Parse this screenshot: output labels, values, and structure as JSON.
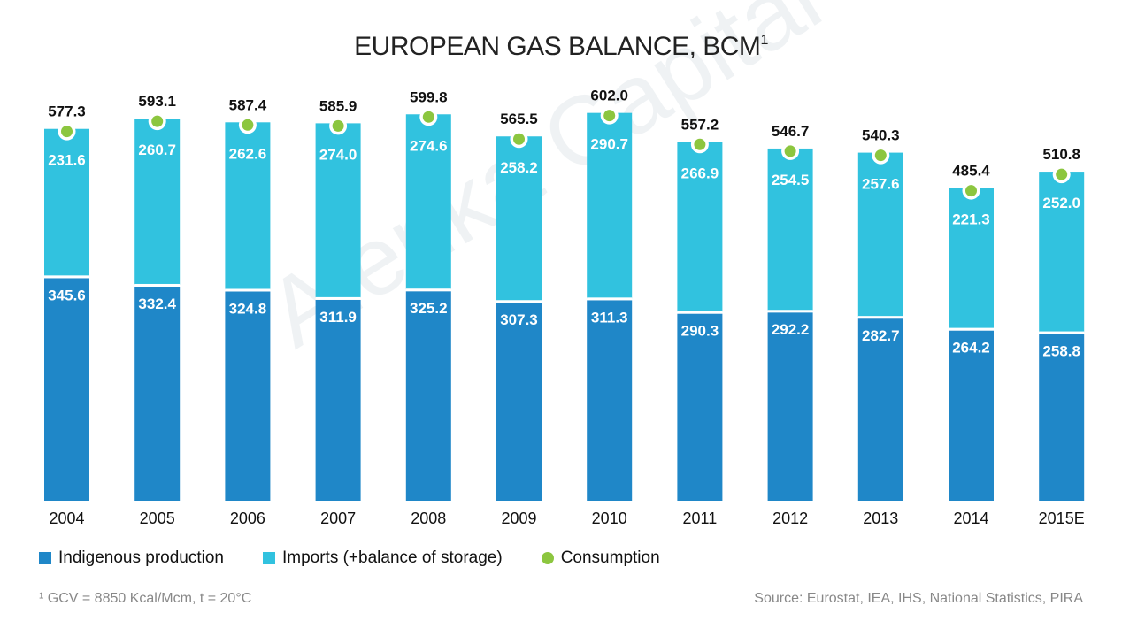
{
  "chart_data": {
    "type": "bar",
    "stacked": true,
    "title": "EUROPEAN GAS BALANCE, BCM",
    "title_superscript": "1",
    "categories": [
      "2004",
      "2005",
      "2006",
      "2007",
      "2008",
      "2009",
      "2010",
      "2011",
      "2012",
      "2013",
      "2014",
      "2015E"
    ],
    "series": [
      {
        "name": "Indigenous production",
        "color": "#1f87c8",
        "values": [
          345.6,
          332.4,
          324.8,
          311.9,
          325.2,
          307.3,
          311.3,
          290.3,
          292.2,
          282.7,
          264.2,
          258.8
        ],
        "labels": [
          "345.6",
          "332.4",
          "324.8",
          "311.9",
          "325.2",
          "307.3",
          "311.3",
          "290.3",
          "292.2",
          "282.7",
          "264.2",
          "258.8"
        ]
      },
      {
        "name": "Imports (+balance of storage)",
        "color": "#31c2df",
        "values": [
          231.6,
          260.7,
          262.6,
          274.0,
          274.6,
          258.2,
          290.7,
          266.9,
          254.5,
          257.6,
          221.3,
          252.0
        ],
        "labels": [
          "231.6",
          "260.7",
          "262.6",
          "274.0",
          "274.6",
          "258.2",
          "290.7",
          "266.9",
          "254.5",
          "257.6",
          "221.3",
          "252.0"
        ]
      }
    ],
    "consumption": {
      "name": "Consumption",
      "color": "#8cc63f",
      "values": [
        577.3,
        593.1,
        587.4,
        585.9,
        599.8,
        565.5,
        602.0,
        557.2,
        546.7,
        540.3,
        485.4,
        510.8
      ],
      "labels": [
        "577.3",
        "593.1",
        "587.4",
        "585.9",
        "599.8",
        "565.5",
        "602.0",
        "557.2",
        "546.7",
        "540.3",
        "485.4",
        "510.8"
      ]
    },
    "ylim": [
      0,
      640
    ],
    "grid": false,
    "legend_position": "bottom-left"
  },
  "legend": {
    "production": "Indigenous production",
    "imports": "Imports (+balance of storage)",
    "consumption": "Consumption"
  },
  "footnote": "¹ GCV = 8850 Kcal/Mcm, t = 20°C",
  "source": "Source: Eurostat, IEA, IHS, National Statistics, PIRA",
  "watermark": "Alenka Capital"
}
